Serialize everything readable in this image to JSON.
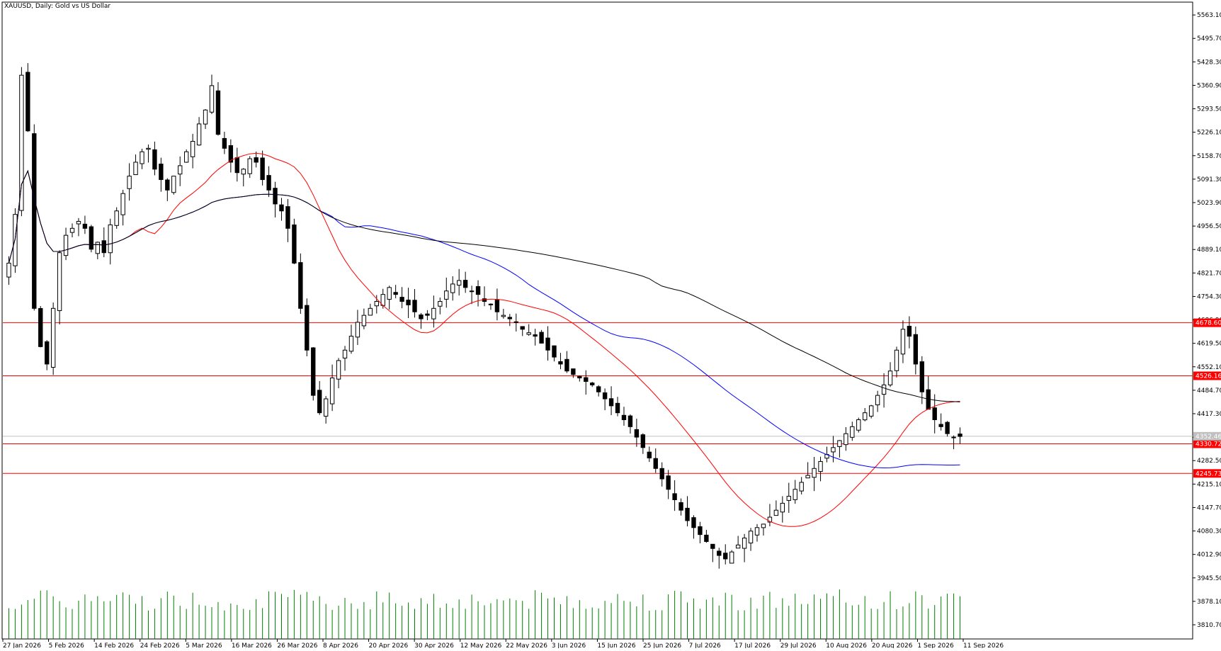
{
  "title": "XAUUSD, Daily:  Gold vs US Dollar",
  "chart_data": {
    "type": "candlestick",
    "symbol": "XAUUSD",
    "timeframe": "Daily",
    "ylim": [
      3770,
      5600
    ],
    "y_ticks": [
      "5563.10",
      "5495.70",
      "5428.30",
      "5360.90",
      "5293.50",
      "5226.10",
      "5158.70",
      "5091.30",
      "5023.90",
      "4956.50",
      "4889.10",
      "4821.70",
      "4754.30",
      "4686.90",
      "4619.50",
      "4552.10",
      "4484.70",
      "4417.30",
      "4349.90",
      "4282.50",
      "4215.10",
      "4147.70",
      "4080.30",
      "4012.90",
      "3945.50",
      "3878.10",
      "3810.70"
    ],
    "x_ticks": [
      "27 Jan 2026",
      "5 Feb 2026",
      "14 Feb 2026",
      "24 Feb 2026",
      "5 Mar 2026",
      "16 Mar 2026",
      "26 Mar 2026",
      "8 Apr 2026",
      "20 Apr 2026",
      "30 Apr 2026",
      "12 May 2026",
      "22 May 2026",
      "3 Jun 2026",
      "15 Jun 2026",
      "25 Jun 2026",
      "7 Jul 2026",
      "17 Jul 2026",
      "29 Jul 2026",
      "10 Aug 2026",
      "20 Aug 2026",
      "1 Sep 2026",
      "11 Sep 2026"
    ],
    "horizontal_levels": [
      {
        "label": "4678.60",
        "value": 4678.6
      },
      {
        "label": "4526.16",
        "value": 4526.16
      },
      {
        "label": "4330.72",
        "value": 4330.72
      },
      {
        "label": "4245.73",
        "value": 4245.73
      }
    ],
    "current_price": {
      "label": "4352.46",
      "value": 4352.46
    },
    "close_series": [
      4850,
      4990,
      5390,
      5230,
      4720,
      4610,
      4560,
      4720,
      4880,
      4930,
      4950,
      4970,
      4950,
      4890,
      4910,
      4880,
      4960,
      5000,
      5050,
      5100,
      5140,
      5170,
      5180,
      5120,
      5090,
      5060,
      5100,
      5130,
      5170,
      5200,
      5250,
      5290,
      5360,
      5220,
      5180,
      5140,
      5110,
      5120,
      5150,
      5140,
      5090,
      5060,
      5020,
      5000,
      4950,
      4850,
      4720,
      4600,
      4470,
      4420,
      4460,
      4520,
      4570,
      4600,
      4640,
      4680,
      4700,
      4720,
      4740,
      4760,
      4780,
      4760,
      4740,
      4730,
      4710,
      4690,
      4700,
      4720,
      4740,
      4770,
      4790,
      4800,
      4780,
      4770,
      4760,
      4740,
      4730,
      4710,
      4700,
      4690,
      4680,
      4660,
      4650,
      4640,
      4620,
      4600,
      4580,
      4560,
      4540,
      4530,
      4520,
      4510,
      4500,
      4480,
      4460,
      4440,
      4420,
      4400,
      4380,
      4350,
      4320,
      4290,
      4260,
      4230,
      4200,
      4170,
      4140,
      4110,
      4090,
      4070,
      4050,
      4030,
      4010,
      4000,
      4020,
      4040,
      4060,
      4080,
      4090,
      4100,
      4120,
      4140,
      4160,
      4180,
      4200,
      4220,
      4240,
      4260,
      4280,
      4300,
      4320,
      4340,
      4360,
      4380,
      4400,
      4420,
      4440,
      4470,
      4500,
      4540,
      4600,
      4660,
      4640,
      4560,
      4480,
      4430,
      4400,
      4380,
      4360,
      4350,
      4352
    ],
    "moving_averages": [
      {
        "color": "#ff0000",
        "period": 20
      },
      {
        "color": "#0000ff",
        "period": 50
      },
      {
        "color": "#000000",
        "period": 100
      }
    ],
    "volume": {
      "color": "#008000"
    },
    "grid": false
  }
}
